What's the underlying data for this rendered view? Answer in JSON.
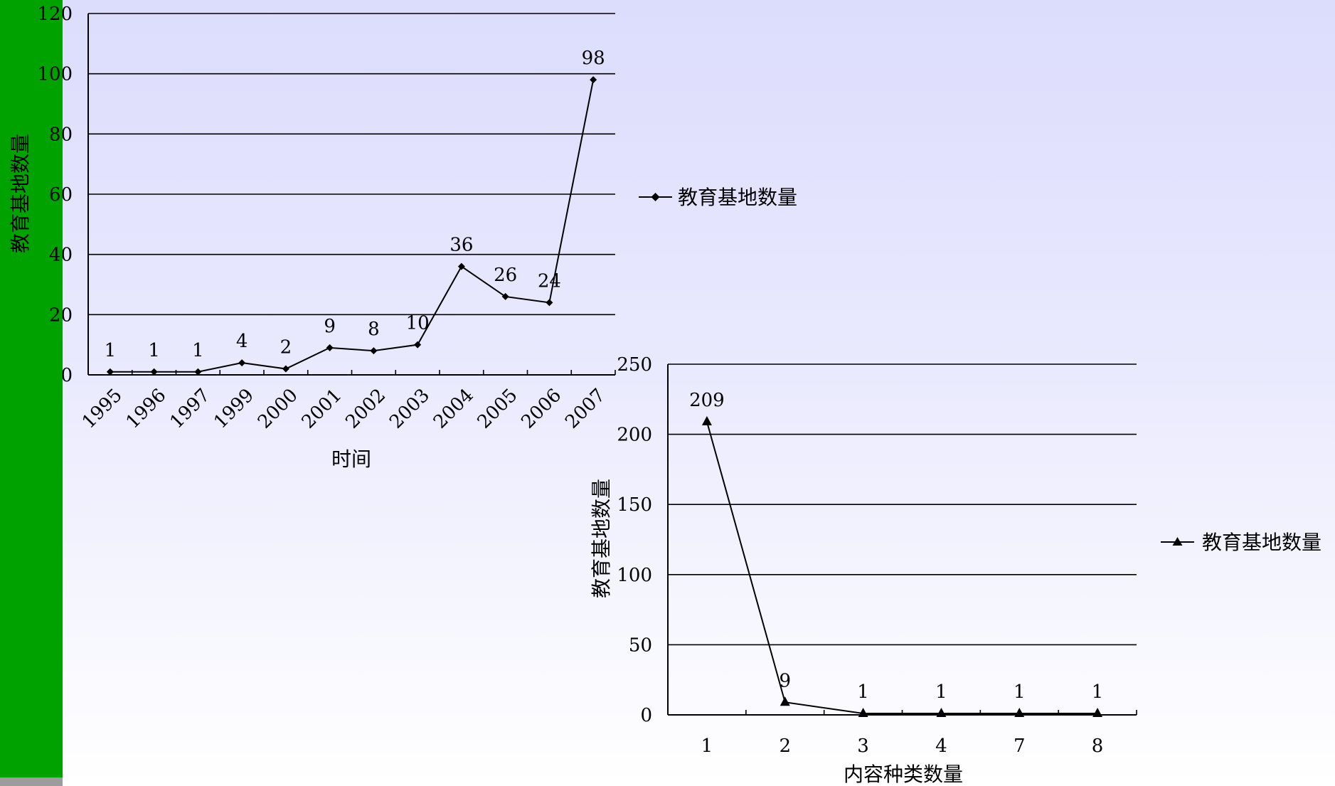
{
  "colors": {
    "side_bar": "#00a200",
    "side_bar_bottom": "#9c9c9c",
    "line": "#000000"
  },
  "chart_data": [
    {
      "type": "line",
      "marker": "diamond",
      "categories": [
        "1995",
        "1996",
        "1997",
        "1999",
        "2000",
        "2001",
        "2002",
        "2003",
        "2004",
        "2005",
        "2006",
        "2007"
      ],
      "series": [
        {
          "name": "教育基地数量",
          "values": [
            1,
            1,
            1,
            4,
            2,
            9,
            8,
            10,
            36,
            26,
            24,
            98
          ]
        }
      ],
      "data_labels": [
        "1",
        "1",
        "1",
        "4",
        "2",
        "9",
        "8",
        "10",
        "36",
        "26",
        "24",
        "98"
      ],
      "xlabel": "时间",
      "ylabel": "教育基地数量",
      "ylim": [
        0,
        120
      ],
      "yticks": [
        "0",
        "20",
        "40",
        "60",
        "80",
        "100",
        "120"
      ],
      "grid": true,
      "legend": "right"
    },
    {
      "type": "line",
      "marker": "triangle",
      "categories": [
        "1",
        "2",
        "3",
        "4",
        "7",
        "8"
      ],
      "series": [
        {
          "name": "教育基地数量",
          "values": [
            209,
            9,
            1,
            1,
            1,
            1
          ]
        }
      ],
      "data_labels": [
        "209",
        "9",
        "1",
        "1",
        "1",
        "1"
      ],
      "xlabel": "内容种类数量",
      "ylabel": "教育基地数量",
      "ylim": [
        0,
        250
      ],
      "yticks": [
        "0",
        "50",
        "100",
        "150",
        "200",
        "250"
      ],
      "grid": true,
      "legend": "right"
    }
  ]
}
